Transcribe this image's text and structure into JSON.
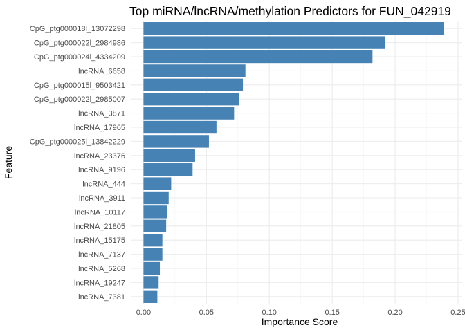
{
  "chart_data": {
    "type": "bar",
    "orientation": "horizontal",
    "title": "Top miRNA/lncRNA/methylation Predictors for FUN_042919",
    "xlabel": "Importance Score",
    "ylabel": "Feature",
    "xlim": [
      0,
      0.25
    ],
    "x_ticks": [
      "0.00",
      "0.05",
      "0.10",
      "0.15",
      "0.20",
      "0.25"
    ],
    "grid": true,
    "bar_color": "#4682b4",
    "categories": [
      "CpG_ptg000018l_13072298",
      "CpG_ptg000022l_2984986",
      "CpG_ptg000024l_4334209",
      "lncRNA_6658",
      "CpG_ptg000015l_9503421",
      "CpG_ptg000022l_2985007",
      "lncRNA_3871",
      "lncRNA_17965",
      "CpG_ptg000025l_13842229",
      "lncRNA_23376",
      "lncRNA_9196",
      "lncRNA_444",
      "lncRNA_3911",
      "lncRNA_10117",
      "lncRNA_21805",
      "lncRNA_15175",
      "lncRNA_7137",
      "lncRNA_5268",
      "lncRNA_19247",
      "lncRNA_7381"
    ],
    "values": [
      0.239,
      0.192,
      0.182,
      0.081,
      0.079,
      0.076,
      0.072,
      0.058,
      0.052,
      0.041,
      0.039,
      0.022,
      0.02,
      0.019,
      0.018,
      0.015,
      0.015,
      0.013,
      0.012,
      0.011
    ]
  }
}
